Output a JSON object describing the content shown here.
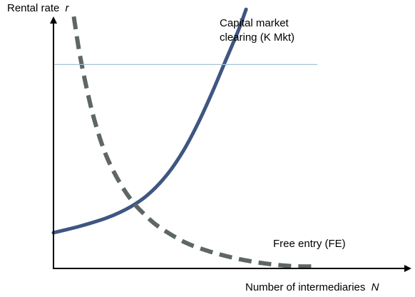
{
  "chart_data": {
    "type": "line",
    "title": "",
    "xlabel": "Number of intermediaries",
    "xlabel_symbol": "N",
    "ylabel": "Rental rate",
    "ylabel_symbol": "r",
    "xlim": [
      0,
      10
    ],
    "ylim": [
      0,
      10
    ],
    "ticks": "none",
    "grid": false,
    "legend": "none",
    "series": [
      {
        "name": "Capital market clearing (K Mkt)",
        "label_lines": [
          "Capital market",
          "clearing (K Mkt)"
        ],
        "style": "solid",
        "color": "#3e5682",
        "x": [
          0.0,
          0.5,
          1.0,
          1.5,
          2.0,
          2.5,
          3.0,
          3.5,
          4.0,
          4.5,
          5.0,
          5.5,
          6.0,
          6.5,
          7.0,
          7.3
        ],
        "y": [
          1.49,
          1.62,
          1.76,
          1.92,
          2.1,
          2.33,
          2.62,
          3.0,
          3.52,
          4.19,
          5.05,
          6.1,
          7.3,
          8.6,
          9.9,
          10.8
        ]
      },
      {
        "name": "Free entry (FE)",
        "label_lines": [
          "Free entry (FE)"
        ],
        "style": "dashed",
        "color": "#5e6763",
        "x": [
          0.77,
          1.0,
          1.3,
          1.6,
          2.0,
          2.5,
          3.0,
          3.5,
          4.0,
          5.0,
          6.0,
          7.0,
          8.0,
          9.0,
          9.8
        ],
        "y": [
          10.5,
          8.9,
          7.3,
          6.0,
          4.7,
          3.6,
          2.78,
          2.2,
          1.73,
          1.08,
          0.68,
          0.4,
          0.21,
          0.1,
          0.08
        ]
      },
      {
        "name": "",
        "style": "thin",
        "color": "#a7c3d7",
        "x": [
          0,
          10
        ],
        "y": [
          8.5,
          8.5
        ]
      }
    ]
  }
}
